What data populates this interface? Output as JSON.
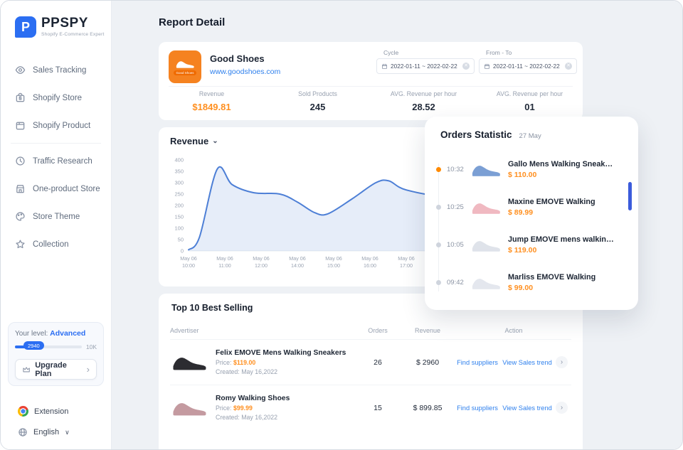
{
  "colors": {
    "accent_blue": "#2b6ef2",
    "link_blue": "#2f80ed",
    "price_orange": "#ff8f1f",
    "scrollbar_blue": "#3b5bdb"
  },
  "sidebar": {
    "brand": "PPSPY",
    "brand_letter": "P",
    "subtitle": "Shopify E-Commerce Expert",
    "items": [
      {
        "label": "Sales Tracking"
      },
      {
        "label": "Shopify Store"
      },
      {
        "label": "Shopify Product"
      },
      {
        "label": "Traffic Research"
      },
      {
        "label": "One-product Store"
      },
      {
        "label": "Store Theme"
      },
      {
        "label": "Collection"
      }
    ],
    "level": {
      "label": "Your level:",
      "value": "Advanced",
      "badge": "2940",
      "max": "10K"
    },
    "upgrade_label": "Upgrade Plan",
    "extension_label": "Extension",
    "language_label": "English"
  },
  "header": {
    "title": "Report Detail"
  },
  "store_card": {
    "name": "Good Shoes",
    "logo_text": "Good Shoes",
    "url": "www.goodshoes.com",
    "cycle_label": "Cycle",
    "cycle_value": "2022-01-11  ~  2022-02-22",
    "from_label": "From - To",
    "from_value": "2022-01-11  ~  2022-02-22",
    "stats": [
      {
        "label": "Revenue",
        "value": "$1849.81"
      },
      {
        "label": "Sold Products",
        "value": "245"
      },
      {
        "label": "AVG. Revenue per hour",
        "value": "28.52"
      },
      {
        "label": "AVG. Revenue per hour",
        "value": "01"
      }
    ]
  },
  "revenue_section": {
    "title": "Revenue"
  },
  "chart_data": {
    "type": "area",
    "title": "Revenue",
    "ylim": [
      0,
      400
    ],
    "yticks": [
      0,
      50,
      100,
      150,
      200,
      250,
      300,
      350,
      400
    ],
    "x_tick_labels": [
      [
        "May 06",
        "10:00"
      ],
      [
        "May 06",
        "11:00"
      ],
      [
        "May 06",
        "12:00"
      ],
      [
        "May 06",
        "14:00"
      ],
      [
        "May 06",
        "15:00"
      ],
      [
        "May 06",
        "16:00"
      ],
      [
        "May 06",
        "17:00"
      ]
    ],
    "points": [
      [
        0,
        5
      ],
      [
        0.05,
        60
      ],
      [
        0.132,
        360
      ],
      [
        0.2,
        292
      ],
      [
        0.3,
        256
      ],
      [
        0.42,
        250
      ],
      [
        0.5,
        215
      ],
      [
        0.58,
        168
      ],
      [
        0.64,
        163
      ],
      [
        0.75,
        228
      ],
      [
        0.86,
        300
      ],
      [
        0.92,
        308
      ],
      [
        1.0,
        268
      ],
      [
        1.2,
        238
      ],
      [
        1.5,
        252
      ],
      [
        1.72,
        246
      ]
    ],
    "line_color": "#4d7fd6",
    "fill_color": "rgba(77,127,214,0.14)",
    "grid": false,
    "legend": false
  },
  "orders_statistic": {
    "title": "Orders Statistic",
    "date": "27 May",
    "items": [
      {
        "time": "10:32",
        "name": "Gallo Mens Walking Sneakers...",
        "price": "$ 110.00",
        "color": "#7b9fd4"
      },
      {
        "time": "10:25",
        "name": "Maxine EMOVE Walking",
        "price": "$ 89.99",
        "color": "#f0b9c1"
      },
      {
        "time": "10:05",
        "name": "Jump EMOVE mens walking s...",
        "price": "$ 119.00",
        "color": "#dfe3ea"
      },
      {
        "time": "09:42",
        "name": "Marliss EMOVE Walking",
        "price": "$ 99.00",
        "color": "#e4e7ee"
      }
    ]
  },
  "best_selling": {
    "title": "Top 10 Best Selling",
    "columns": {
      "advertiser": "Advertiser",
      "orders": "Orders",
      "revenue": "Revenue",
      "action": "Action"
    },
    "rows": [
      {
        "name": "Felix EMOVE Mens Walking Sneakers",
        "price_label": "Price:",
        "price": "$119.00",
        "created_label": "Created:",
        "created": "May 16,2022",
        "orders": "26",
        "revenue": "$ 2960",
        "find": "Find suppliers",
        "view": "View Sales trend",
        "color": "#2c2c31"
      },
      {
        "name": "Romy Walking Shoes",
        "price_label": "Price:",
        "price": "$99.99",
        "created_label": "Created:",
        "created": "May 16,2022",
        "orders": "15",
        "revenue": "$ 899.85",
        "find": "Find suppliers",
        "view": "View Sales trend",
        "color": "#c49aa0"
      }
    ]
  }
}
